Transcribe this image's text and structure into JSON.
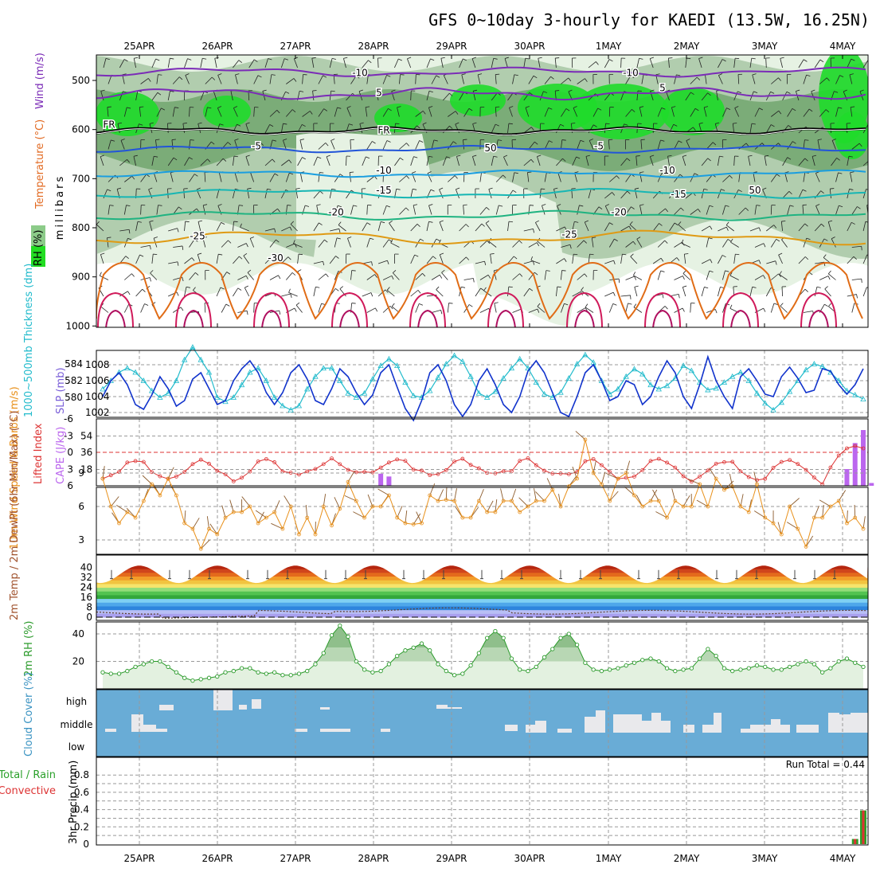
{
  "title": "GFS 0~10day 3-hourly for KAEDI (13.5W, 16.25N)",
  "date_labels": [
    "25APR",
    "26APR",
    "27APR",
    "28APR",
    "29APR",
    "30APR",
    "1MAY",
    "2MAY",
    "3MAY",
    "4MAY"
  ],
  "colors": {
    "rh_light": "#e6f2e3",
    "rh_mid": "#a7c7a4",
    "rh_dark": "#6ea46a",
    "rh_green": "#1fdc2a",
    "freezing": "#000000",
    "wind5": "#7b2cb7",
    "t_minus5": "#2255d8",
    "t_10": "#1a9ee0",
    "t_15": "#17b6b4",
    "t_20": "#1fb381",
    "t_25": "#df9a14",
    "t_30": "#e06c16",
    "t_hot": "#d01a5a",
    "slp": "#1133cc",
    "thick": "#22bbcc",
    "li": "#dd3333",
    "cape": "#bb66ee",
    "wind10": "#e8901a",
    "barb": "#8b5a2b",
    "rh2m": "#2a9a2a",
    "cloud_sky": "#69acd6",
    "cloud": "#e9e9ec",
    "precip_total": "#2aa02a",
    "precip_conv": "#dd3333"
  },
  "chart_data": [
    {
      "type": "heatmap",
      "name": "upper_air",
      "ylabel": "millibars",
      "yticks": [
        500,
        600,
        700,
        800,
        900,
        1000
      ],
      "legend": [
        "RH (%)",
        "Temperature (°C)",
        "Wind (m/s)"
      ],
      "contour_labels": {
        "wind": [
          "10",
          "5",
          "10",
          "5"
        ],
        "temperature": [
          "FR",
          "FR",
          "-5",
          "-5",
          "-10",
          "-10",
          "-15",
          "-15",
          "-20",
          "-20",
          "-25",
          "-25",
          "-30"
        ],
        "rh": [
          "50",
          "50"
        ]
      },
      "isotherm_levels_mb": {
        "FR": 603,
        "-5": 640,
        "-10": 690,
        "-15": 730,
        "-20": 775,
        "-25": 820,
        "-30": 860
      },
      "wind_label_levels_mb": {
        "10": 483,
        "5": 527
      }
    },
    {
      "type": "line",
      "name": "slp_thickness",
      "series": [
        {
          "name": "SLP (mb)",
          "axis": "right",
          "ticks": [
            1002,
            1004,
            1006,
            1008
          ],
          "values": [
            1004,
            1006,
            1007,
            1005.5,
            1003,
            1002.4,
            1004.2,
            1006.5,
            1005,
            1002.8,
            1003.5,
            1006.2,
            1007,
            1005,
            1003,
            1003.5,
            1006,
            1007.5,
            1008.5,
            1007,
            1004.5,
            1003,
            1004.5,
            1007,
            1008,
            1006.2,
            1003.5,
            1003,
            1005,
            1007.5,
            1006.5,
            1004.5,
            1003,
            1004.2,
            1007,
            1008,
            1005.2,
            1002.5,
            1001,
            1003.5,
            1007,
            1008,
            1006,
            1003,
            1001.5,
            1003,
            1006,
            1007.5,
            1005.5,
            1003,
            1002,
            1004,
            1007.2,
            1008.5,
            1007,
            1004.5,
            1002,
            1001.5,
            1004,
            1007,
            1008,
            1006,
            1003.5,
            1004,
            1006,
            1005.5,
            1003,
            1004,
            1006.5,
            1008.5,
            1007,
            1004,
            1002.5,
            1005.5,
            1009,
            1006,
            1004,
            1002.5,
            1006.5,
            1007.5,
            1006,
            1004.3,
            1004,
            1006.5,
            1007.7,
            1006.3,
            1004.5,
            1004.8,
            1007.5,
            1007.2,
            1005.5,
            1004.3,
            1005.5,
            1007.5
          ]
        },
        {
          "name": "1000~500mb Thickness (dm)",
          "axis": "left",
          "ticks": [
            580,
            582,
            584
          ],
          "values": [
            581,
            582,
            583,
            583.5,
            583,
            582,
            580.8,
            580,
            580.5,
            582,
            584.5,
            586,
            584.5,
            583,
            580,
            579.5,
            580,
            581.5,
            583,
            583.5,
            582,
            580,
            579,
            578.5,
            579,
            581,
            582.5,
            583.5,
            583.5,
            582,
            580.5,
            580,
            580.5,
            582.2,
            583.8,
            584.6,
            583.8,
            581.8,
            580.2,
            580,
            580.8,
            582.4,
            584,
            585,
            584.3,
            582.5,
            580.5,
            580,
            580.7,
            582.3,
            583.5,
            584.6,
            583.5,
            581.8,
            580.4,
            580,
            580.6,
            582.3,
            584,
            585.1,
            584.2,
            582,
            580.4,
            581,
            582.5,
            583.4,
            582.8,
            581.5,
            581,
            581.4,
            582.3,
            583.8,
            583.2,
            581.8,
            580.9,
            581.1,
            581.8,
            582.5,
            583,
            582,
            580.5,
            579.3,
            578.5,
            579.4,
            580.7,
            582,
            583.3,
            584,
            583.7,
            583,
            582,
            580.8,
            580.3,
            579.8
          ]
        }
      ]
    },
    {
      "type": "line",
      "name": "lifted_index_cape",
      "series": [
        {
          "name": "Lifted Index",
          "axis": "left",
          "ticks": [
            "-6",
            "-3",
            "0",
            "3",
            "6"
          ]
        },
        {
          "name": "CAPE (J/kg)",
          "axis": "right",
          "ticks": [
            18,
            36,
            54
          ]
        }
      ],
      "cape_bars": [
        [
          34,
          13
        ],
        [
          35,
          10
        ],
        [
          91,
          18
        ],
        [
          92,
          46
        ],
        [
          93,
          60
        ],
        [
          94,
          3
        ]
      ]
    },
    {
      "type": "line",
      "name": "wind10m",
      "ylabel": "10m Wind Speed & Barbs (m/s)",
      "yticks": [
        3,
        6,
        9
      ],
      "values": [
        8.5,
        6,
        4.5,
        5.5,
        5,
        6.5,
        8,
        7,
        8.5,
        7,
        4.5,
        4,
        2.2,
        4,
        3.5,
        5,
        5.5,
        5.5,
        6,
        4.5,
        5,
        5.5,
        4,
        6,
        3.5,
        5,
        3.5,
        6,
        4.3,
        5.8,
        8.2,
        6.5,
        5,
        6,
        6,
        7,
        5,
        4.5,
        4.4,
        4.5,
        7,
        6.5,
        6.6,
        6.5,
        5,
        5,
        6.5,
        5.5,
        5.5,
        6.5,
        6.5,
        5.5,
        6,
        6.5,
        6.5,
        7.5,
        6,
        7.8,
        8.5,
        12,
        9,
        8,
        6.5,
        8.5,
        9,
        7,
        6,
        6.5,
        6.5,
        5,
        6.5,
        6,
        6,
        8,
        6,
        8.5,
        7.5,
        7.8,
        6,
        5.5,
        8,
        5,
        4.5,
        3.5,
        6,
        4,
        2.4,
        5,
        5,
        6,
        6.5,
        4.5,
        5,
        4
      ]
    },
    {
      "type": "area",
      "name": "temp2m",
      "ylabel": "2m Temp / 2m DewPt (6hr Min/Max) (°C)",
      "yticks": [
        0,
        8,
        16,
        24,
        32,
        40
      ],
      "band_colors": [
        "#a9a0ef",
        "#b8bff5",
        "#2e85dd",
        "#4ea7ea",
        "#7fd0f3",
        "#33a83b",
        "#52c351",
        "#93dc7a",
        "#f6e46c",
        "#f2c440",
        "#f29d2a",
        "#e46a1c",
        "#d0451c",
        "#b5260f",
        "#9a2a1a",
        "#5a3a3a"
      ]
    },
    {
      "type": "area",
      "name": "rh2m",
      "ylabel": "2m RH (%)",
      "yticks": [
        20,
        40
      ],
      "values": [
        12,
        11,
        11,
        13,
        16,
        18,
        20,
        20,
        16,
        12,
        8,
        6,
        7,
        8,
        9,
        12,
        13,
        15,
        15,
        12,
        11,
        12,
        10,
        10,
        11,
        13,
        18,
        26,
        39,
        46,
        38,
        20,
        14,
        12,
        13,
        18,
        24,
        28,
        30,
        33,
        28,
        18,
        13,
        10,
        11,
        17,
        26,
        37,
        42,
        37,
        22,
        14,
        13,
        16,
        23,
        29,
        37,
        40,
        32,
        19,
        14,
        13,
        14,
        15,
        17,
        19,
        21,
        22,
        20,
        15,
        13,
        14,
        15,
        22,
        29,
        24,
        15,
        13,
        14,
        15,
        17,
        16,
        14,
        14,
        16,
        18,
        20,
        18,
        12,
        15,
        20,
        22,
        19,
        16
      ]
    },
    {
      "type": "bar",
      "name": "cloud_cover",
      "ylabel": "Cloud Cover (%)",
      "yticks": [
        "high",
        "middle",
        "low"
      ]
    },
    {
      "type": "bar",
      "name": "precip3hr",
      "ylabel": "3hr Precip (mm)",
      "legend": [
        "Total / Rain",
        "Convective"
      ],
      "annotation": "Run Total = 0.44",
      "yticks": [
        "0",
        "0.2",
        "0.4",
        "0.6",
        "0.8"
      ],
      "bars": [
        {
          "index": 92,
          "total": 0.06,
          "convective": 0.06
        },
        {
          "index": 93,
          "total": 0.39,
          "convective": 0.39
        }
      ]
    }
  ]
}
